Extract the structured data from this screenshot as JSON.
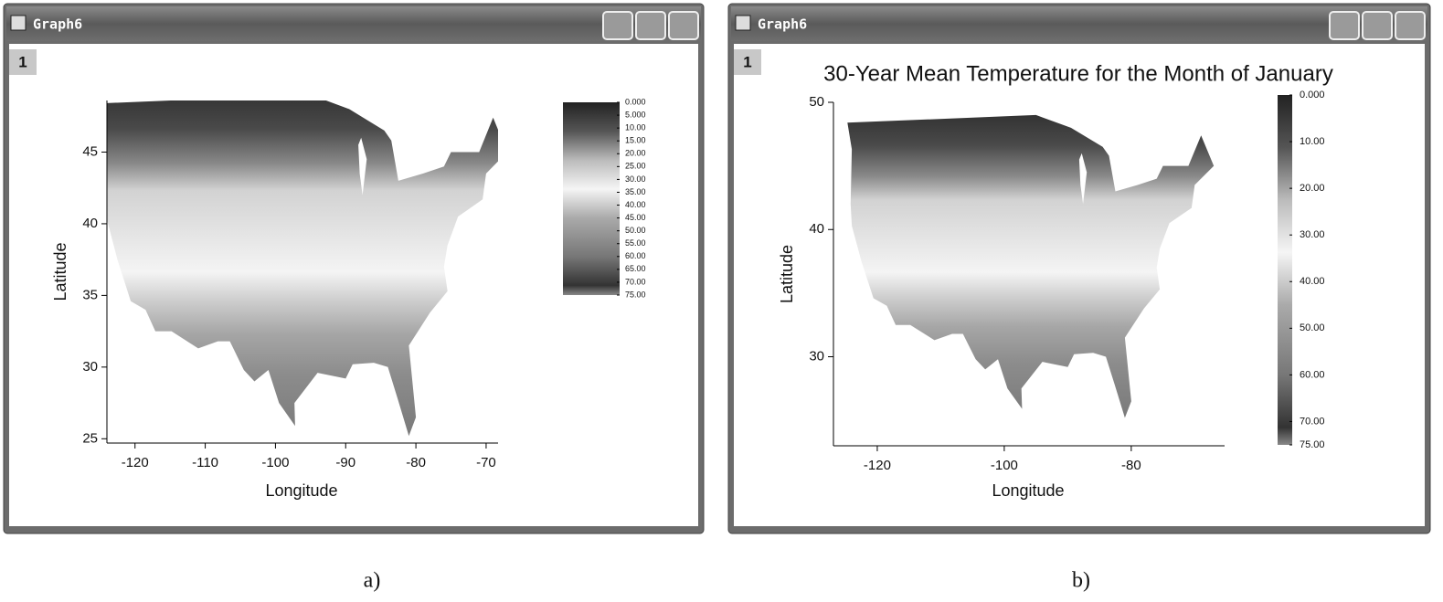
{
  "windows": [
    {
      "title": "Graph6",
      "layer": "1",
      "plot": {
        "x_label": "Longitude",
        "y_label": "Latitude",
        "xlim": [
          -124,
          -68.3
        ],
        "ylim": [
          24.7,
          48.6
        ],
        "xticks": [
          -120,
          -110,
          -100,
          -90,
          -80,
          -70
        ],
        "yticks": [
          25,
          30,
          35,
          40,
          45
        ],
        "colorbar": {
          "zlim": [
            0,
            75
          ],
          "ticks": [
            {
              "value": 0,
              "label": "0.000"
            },
            {
              "value": 5,
              "label": "5.000"
            },
            {
              "value": 10,
              "label": "10.00"
            },
            {
              "value": 15,
              "label": "15.00"
            },
            {
              "value": 20,
              "label": "20.00"
            },
            {
              "value": 25,
              "label": "25.00"
            },
            {
              "value": 30,
              "label": "30.00"
            },
            {
              "value": 35,
              "label": "35.00"
            },
            {
              "value": 40,
              "label": "40.00"
            },
            {
              "value": 45,
              "label": "45.00"
            },
            {
              "value": 50,
              "label": "50.00"
            },
            {
              "value": 55,
              "label": "55.00"
            },
            {
              "value": 60,
              "label": "60.00"
            },
            {
              "value": 65,
              "label": "65.00"
            },
            {
              "value": 70,
              "label": "70.00"
            },
            {
              "value": 75,
              "label": "75.00"
            }
          ]
        }
      }
    },
    {
      "title": "Graph6",
      "layer": "1",
      "plot": {
        "title": "30-Year Mean Temperature for the Month of January",
        "x_label": "Longitude",
        "y_label": "Latitude",
        "xlim": [
          -126.9,
          -65.3
        ],
        "ylim": [
          23,
          50
        ],
        "xticks": [
          -120,
          -100,
          -80
        ],
        "yticks": [
          30,
          40,
          50
        ],
        "colorbar": {
          "zlim": [
            0,
            75
          ],
          "ticks": [
            {
              "value": 0,
              "label": "0.000"
            },
            {
              "value": 10,
              "label": "10.00"
            },
            {
              "value": 20,
              "label": "20.00"
            },
            {
              "value": 30,
              "label": "30.00"
            },
            {
              "value": 40,
              "label": "40.00"
            },
            {
              "value": 50,
              "label": "50.00"
            },
            {
              "value": 60,
              "label": "60.00"
            },
            {
              "value": 70,
              "label": "70.00"
            },
            {
              "value": 75,
              "label": "75.00"
            }
          ]
        }
      }
    }
  ],
  "captions": [
    "a)",
    "b)"
  ]
}
